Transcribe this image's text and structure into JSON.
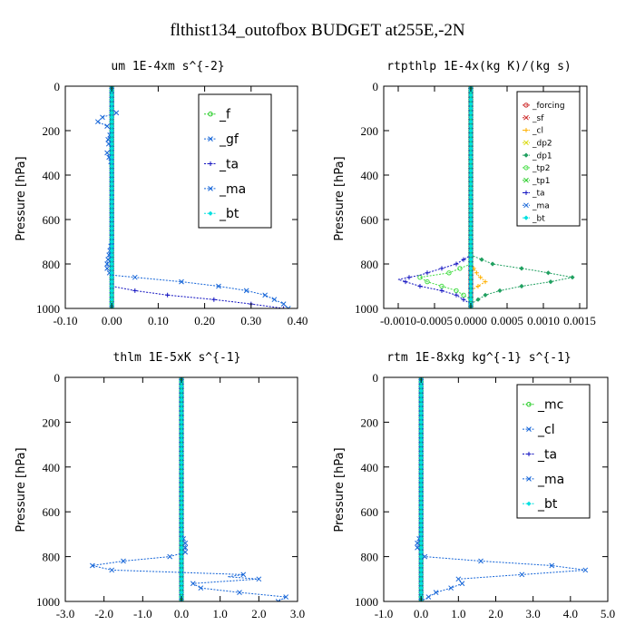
{
  "figure": {
    "title": "flthist134_outofbox  BUDGET at255E,-2N"
  },
  "colors": {
    "green": "#22cc22",
    "blue": "#1565d8",
    "navy": "#1010c0",
    "cyan": "#00e0e0",
    "red": "#cc2222",
    "orange": "#ffb000",
    "yellow": "#d8d800",
    "lime": "#44dd44",
    "teal": "#20a060"
  },
  "chart_data": [
    {
      "type": "line",
      "title": "um   1E-4xm s^{-2}",
      "ylabel": "Pressure [hPa]",
      "xlim": [
        -0.1,
        0.4
      ],
      "ylim": [
        1000,
        0
      ],
      "xticks": [
        "-0.10",
        "0.00",
        "0.10",
        "0.20",
        "0.30",
        "0.40"
      ],
      "xtick_values": [
        -0.1,
        0.0,
        0.1,
        0.2,
        0.3,
        0.4
      ],
      "yticks": [
        "0",
        "200",
        "400",
        "600",
        "800",
        "1000"
      ],
      "ytick_values": [
        0,
        200,
        400,
        600,
        800,
        1000
      ],
      "legend": {
        "position": "top-right",
        "font": 14
      },
      "series": [
        {
          "name": "_f",
          "color": "#22cc22",
          "width": 3,
          "y": [
            0,
            1000
          ],
          "x": [
            0,
            0
          ]
        },
        {
          "name": "_gf",
          "color": "#1565d8",
          "y": [
            0,
            100,
            120,
            140,
            160,
            180,
            200,
            250,
            280,
            300,
            350,
            400,
            450,
            500,
            600,
            700,
            800,
            830,
            850,
            860,
            880,
            900,
            920,
            940,
            960,
            980,
            1000
          ],
          "x": [
            0,
            0,
            0.01,
            -0.02,
            -0.03,
            -0.01,
            0.0,
            -0.01,
            0.0,
            -0.01,
            0.0,
            0.0,
            0.0,
            0.0,
            0.0,
            0.0,
            -0.01,
            -0.01,
            0.0,
            0.05,
            0.15,
            0.23,
            0.29,
            0.33,
            0.35,
            0.37,
            0.38
          ]
        },
        {
          "name": "_ta",
          "color": "#1010c0",
          "y": [
            0,
            200,
            400,
            600,
            800,
            850,
            880,
            900,
            920,
            940,
            960,
            980,
            1000
          ],
          "x": [
            0,
            0,
            0,
            0,
            0,
            0.0,
            0.0,
            0.0,
            0.05,
            0.12,
            0.22,
            0.3,
            0.37
          ]
        },
        {
          "name": "_ma",
          "color": "#1565d8",
          "dashed": true,
          "y": [
            0,
            1000
          ],
          "x": [
            0,
            0
          ]
        },
        {
          "name": "_bt",
          "color": "#00e0e0",
          "y": [
            0,
            1000
          ],
          "x": [
            0,
            0
          ]
        }
      ]
    },
    {
      "type": "line",
      "title": "rtpthlp   1E-4x(kg K)/(kg s)",
      "ylabel": "Pressure [hPa]",
      "xlim": [
        -0.0012,
        0.0016
      ],
      "ylim": [
        1000,
        0
      ],
      "xticks": [
        "-0.0010",
        "-0.0005",
        "0.0000",
        "0.0005",
        "0.0010",
        "0.0015"
      ],
      "xtick_values": [
        -0.001,
        -0.0005,
        0.0,
        0.0005,
        0.001,
        0.0015
      ],
      "yticks": [
        "0",
        "200",
        "400",
        "600",
        "800",
        "1000"
      ],
      "ytick_values": [
        0,
        200,
        400,
        600,
        800,
        1000
      ],
      "legend": {
        "position": "top-right",
        "font": 9
      },
      "series": [
        {
          "name": "_forcing",
          "color": "#cc2222",
          "y": [
            0,
            1000
          ],
          "x": [
            0,
            0
          ]
        },
        {
          "name": "_sf",
          "color": "#cc2222",
          "width": 4,
          "y": [
            0,
            1000
          ],
          "x": [
            0,
            0
          ]
        },
        {
          "name": "_cl",
          "color": "#ffb000",
          "y": [
            0,
            800,
            850,
            880,
            900,
            920,
            950,
            1000
          ],
          "x": [
            0,
            0,
            0.0001,
            0.0002,
            0.0001,
            0.0,
            0.0,
            0
          ]
        },
        {
          "name": "_dp2",
          "color": "#d8d800",
          "y": [
            0,
            1000
          ],
          "x": [
            0,
            0
          ]
        },
        {
          "name": "_dp1",
          "color": "#20a060",
          "y": [
            0,
            700,
            760,
            800,
            830,
            860,
            880,
            900,
            920,
            940,
            960,
            980,
            1000
          ],
          "x": [
            0,
            0,
            0.0,
            0.0003,
            0.0009,
            0.0014,
            0.0011,
            0.0007,
            0.0004,
            0.0002,
            0.0001,
            0.0,
            0
          ]
        },
        {
          "name": "_tp2",
          "color": "#44dd44",
          "y": [
            0,
            800,
            840,
            860,
            880,
            900,
            920,
            940,
            960,
            980,
            1000
          ],
          "x": [
            0,
            0,
            -0.0003,
            -0.0007,
            -0.0006,
            -0.0004,
            -0.0002,
            -0.0001,
            0.0,
            0.0,
            0
          ]
        },
        {
          "name": "_tp1",
          "color": "#22cc22",
          "width": 3,
          "y": [
            0,
            1000
          ],
          "x": [
            0,
            0
          ]
        },
        {
          "name": "_ta",
          "color": "#1010c0",
          "y": [
            0,
            760,
            800,
            820,
            850,
            870,
            880,
            900,
            920,
            940,
            960,
            980,
            1000
          ],
          "x": [
            0,
            0,
            -0.0002,
            -0.0004,
            -0.0007,
            -0.001,
            -0.0009,
            -0.0007,
            -0.0004,
            -0.0002,
            -0.0001,
            0.0,
            0
          ]
        },
        {
          "name": "_ma",
          "color": "#1565d8",
          "dashed": true,
          "y": [
            0,
            1000
          ],
          "x": [
            0,
            0
          ]
        },
        {
          "name": "_bt",
          "color": "#00e0e0",
          "y": [
            0,
            1000
          ],
          "x": [
            0,
            0
          ]
        }
      ]
    },
    {
      "type": "line",
      "title": "thlm   1E-5xK s^{-1}",
      "ylabel": "Pressure [hPa]",
      "xlim": [
        -3.0,
        3.0
      ],
      "ylim": [
        1000,
        0
      ],
      "xticks": [
        "-3.0",
        "-2.0",
        "-1.0",
        "0.0",
        "1.0",
        "2.0",
        "3.0"
      ],
      "xtick_values": [
        -3,
        -2,
        -1,
        0,
        1,
        2,
        3
      ],
      "yticks": [
        "0",
        "200",
        "400",
        "600",
        "800",
        "1000"
      ],
      "ytick_values": [
        0,
        200,
        400,
        600,
        800,
        1000
      ],
      "legend": {
        "position": "top-right",
        "font": 14
      },
      "series": [
        {
          "name": "_mc",
          "color": "#22cc22",
          "width": 4,
          "y": [
            0,
            1000
          ],
          "x": [
            0,
            0
          ]
        },
        {
          "name": "_cl",
          "color": "#1565d8",
          "y": [
            0,
            700,
            740,
            760,
            780,
            800,
            820,
            840,
            860,
            880,
            890,
            900,
            920,
            940,
            960,
            980,
            1000
          ],
          "x": [
            0,
            0,
            0.1,
            0.1,
            0.1,
            -0.3,
            -1.5,
            -2.3,
            -1.8,
            1.6,
            1.2,
            2.0,
            0.3,
            0.5,
            1.5,
            2.7,
            2.5
          ]
        },
        {
          "name": "_ta",
          "color": "#1010c0",
          "y": [
            0,
            1000
          ],
          "x": [
            0,
            0
          ]
        },
        {
          "name": "_ma",
          "color": "#1565d8",
          "dashed": true,
          "y": [
            0,
            1000
          ],
          "x": [
            0,
            0
          ]
        },
        {
          "name": "_bt",
          "color": "#00e0e0",
          "y": [
            0,
            1000
          ],
          "x": [
            0,
            0
          ]
        }
      ]
    },
    {
      "type": "line",
      "title": "rtm   1E-8xkg kg^{-1} s^{-1}",
      "ylabel": "Pressure [hPa]",
      "xlim": [
        -1.0,
        5.0
      ],
      "ylim": [
        1000,
        0
      ],
      "xticks": [
        "-1.0",
        "0.0",
        "1.0",
        "2.0",
        "3.0",
        "4.0",
        "5.0"
      ],
      "xtick_values": [
        -1,
        0,
        1,
        2,
        3,
        4,
        5
      ],
      "yticks": [
        "0",
        "200",
        "400",
        "600",
        "800",
        "1000"
      ],
      "ytick_values": [
        0,
        200,
        400,
        600,
        800,
        1000
      ],
      "legend": {
        "position": "top-right",
        "font": 14
      },
      "series": [
        {
          "name": "_mc",
          "color": "#22cc22",
          "width": 4,
          "y": [
            0,
            1000
          ],
          "x": [
            0,
            0
          ]
        },
        {
          "name": "_cl",
          "color": "#1565d8",
          "y": [
            0,
            700,
            740,
            760,
            780,
            800,
            820,
            840,
            860,
            880,
            900,
            920,
            940,
            960,
            980,
            1000
          ],
          "x": [
            0,
            0,
            -0.1,
            -0.1,
            0.0,
            0.1,
            1.6,
            3.5,
            4.4,
            2.7,
            1.0,
            1.1,
            0.8,
            0.4,
            0.2,
            0.0
          ]
        },
        {
          "name": "_ta",
          "color": "#1010c0",
          "y": [
            0,
            1000
          ],
          "x": [
            0,
            0
          ]
        },
        {
          "name": "_ma",
          "color": "#1565d8",
          "dashed": true,
          "y": [
            0,
            1000
          ],
          "x": [
            0,
            0
          ]
        },
        {
          "name": "_bt",
          "color": "#00e0e0",
          "y": [
            0,
            1000
          ],
          "x": [
            0,
            0
          ]
        }
      ]
    }
  ]
}
